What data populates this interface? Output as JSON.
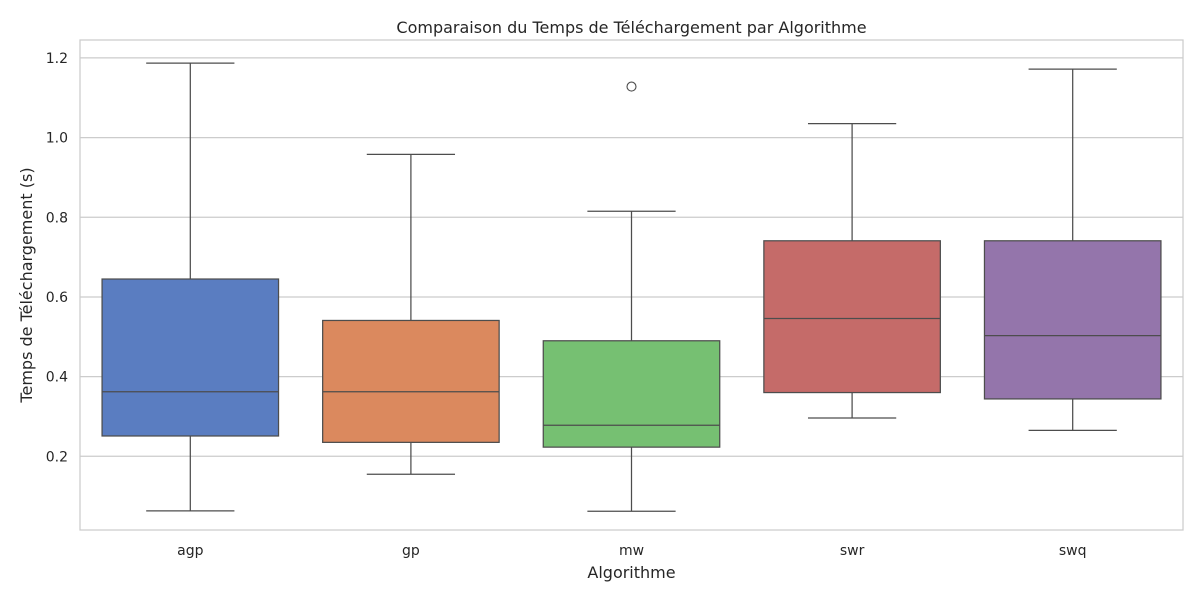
{
  "chart_data": {
    "type": "box",
    "title": "Comparaison du Temps de Téléchargement par Algorithme",
    "xlabel": "Algorithme",
    "ylabel": "Temps de Téléchargement (s)",
    "ylim": [
      0.015,
      1.245
    ],
    "yticks": [
      0.2,
      0.4,
      0.6,
      0.8,
      1.0,
      1.2
    ],
    "ytick_labels": [
      "0.2",
      "0.4",
      "0.6",
      "0.8",
      "1.0",
      "1.2"
    ],
    "grid": true,
    "categories": [
      "agp",
      "gp",
      "mw",
      "swr",
      "swq"
    ],
    "boxes": [
      {
        "category": "agp",
        "whisker_low": 0.063,
        "q1": 0.251,
        "median": 0.362,
        "q3": 0.645,
        "whisker_high": 1.187,
        "outliers": [],
        "color": "#5a7dc1"
      },
      {
        "category": "gp",
        "whisker_low": 0.155,
        "q1": 0.235,
        "median": 0.362,
        "q3": 0.541,
        "whisker_high": 0.958,
        "outliers": [],
        "color": "#db895e"
      },
      {
        "category": "mw",
        "whisker_low": 0.062,
        "q1": 0.223,
        "median": 0.278,
        "q3": 0.49,
        "whisker_high": 0.815,
        "outliers": [
          1.128
        ],
        "color": "#76c072"
      },
      {
        "category": "swr",
        "whisker_low": 0.296,
        "q1": 0.36,
        "median": 0.546,
        "q3": 0.741,
        "whisker_high": 1.035,
        "outliers": [],
        "color": "#c56b69"
      },
      {
        "category": "swq",
        "whisker_low": 0.265,
        "q1": 0.344,
        "median": 0.503,
        "q3": 0.741,
        "whisker_high": 1.172,
        "outliers": [],
        "color": "#9475ab"
      }
    ]
  },
  "colors": {
    "grid": "#cccccc",
    "spine": "#cccccc",
    "line": "#4d4d4d",
    "text": "#262626"
  }
}
